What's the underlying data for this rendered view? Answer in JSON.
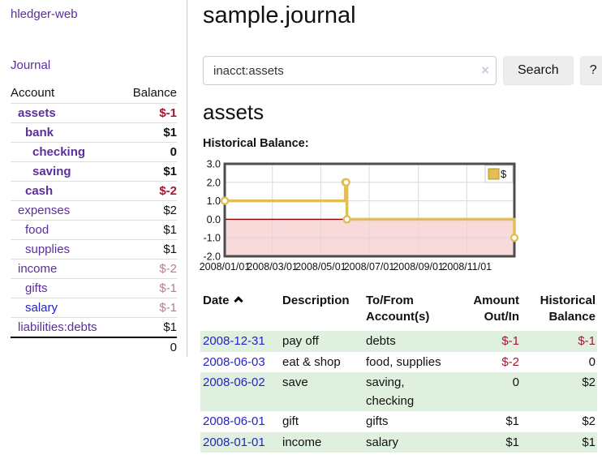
{
  "colors": {
    "link_purple": "#5b2e9e",
    "link_blue": "#2323cc",
    "negative_strong": "#9e1a34",
    "negative_muted": "#b97f86",
    "row_green": "#dff0df"
  },
  "sidebar": {
    "brand": "hledger-web",
    "nav": [
      {
        "label": "Journal"
      }
    ],
    "accounts_table": {
      "headers": [
        "Account",
        "Balance"
      ],
      "rows": [
        {
          "name": "assets",
          "depth": 1,
          "bold": true,
          "balance": "$-1",
          "balance_style": "neg-strong",
          "link_color": "purple"
        },
        {
          "name": "bank",
          "depth": 2,
          "bold": true,
          "balance": "$1",
          "balance_style": "pos",
          "link_color": "purple"
        },
        {
          "name": "checking",
          "depth": 3,
          "bold": true,
          "balance": "0",
          "balance_style": "pos",
          "link_color": "purple"
        },
        {
          "name": "saving",
          "depth": 3,
          "bold": true,
          "balance": "$1",
          "balance_style": "pos",
          "link_color": "purple"
        },
        {
          "name": "cash",
          "depth": 2,
          "bold": true,
          "balance": "$-2",
          "balance_style": "neg-strong",
          "link_color": "purple"
        },
        {
          "name": "expenses",
          "depth": 1,
          "bold": false,
          "balance": "$2",
          "balance_style": "pos",
          "link_color": "purple"
        },
        {
          "name": "food",
          "depth": 2,
          "bold": false,
          "balance": "$1",
          "balance_style": "pos",
          "link_color": "purple"
        },
        {
          "name": "supplies",
          "depth": 2,
          "bold": false,
          "balance": "$1",
          "balance_style": "pos",
          "link_color": "purple"
        },
        {
          "name": "income",
          "depth": 1,
          "bold": false,
          "balance": "$-2",
          "balance_style": "neg-muted",
          "link_color": "purple"
        },
        {
          "name": "gifts",
          "depth": 2,
          "bold": false,
          "balance": "$-1",
          "balance_style": "neg-muted",
          "link_color": "purple"
        },
        {
          "name": "salary",
          "depth": 2,
          "bold": false,
          "balance": "$-1",
          "balance_style": "neg-muted",
          "link_color": "blue"
        },
        {
          "name": "liabilities:debts",
          "depth": 1,
          "bold": false,
          "balance": "$1",
          "balance_style": "pos",
          "link_color": "purple"
        }
      ],
      "total": "0"
    }
  },
  "main": {
    "title": "sample.journal",
    "search": {
      "value": "inacct:assets",
      "clear_icon": "×",
      "button": "Search",
      "help_button": "?"
    },
    "account_heading": "assets",
    "chart_label": "Historical Balance:"
  },
  "chart_data": {
    "type": "line",
    "interpolation": "step-after",
    "title": "Historical Balance:",
    "series": [
      {
        "name": "$",
        "points": [
          {
            "date": "2008-01-01",
            "value": 1
          },
          {
            "date": "2008-06-01",
            "value": 2
          },
          {
            "date": "2008-06-02",
            "value": 2
          },
          {
            "date": "2008-06-03",
            "value": 0
          },
          {
            "date": "2008-12-31",
            "value": -1
          }
        ]
      }
    ],
    "x_range": [
      "2008-01-01",
      "2008-12-31"
    ],
    "ylim": [
      -2,
      3
    ],
    "yticks": [
      3.0,
      2.0,
      1.0,
      0.0,
      -1.0,
      -2.0
    ],
    "xticks": [
      "2008/01/01",
      "2008/03/01",
      "2008/05/01",
      "2008/07/01",
      "2008/09/01",
      "2008/11/01"
    ],
    "legend_position": "top-right",
    "grid": true,
    "colors": {
      "line": "#e2bf56",
      "marker_fill": "#ffffff",
      "swatch_border": "#b5952f",
      "negative_region": "#f9dada",
      "zero_line": "#8b0000",
      "grid": "#d6d6d6",
      "border": "#4d4d4d"
    }
  },
  "transactions": {
    "headers": {
      "date": "Date",
      "description": "Description",
      "account": "To/From Account(s)",
      "amount": "Amount Out/In",
      "balance": "Historical Balance"
    },
    "sort": "date-ascending-caret",
    "rows": [
      {
        "date": "2008-12-31",
        "description": "pay off",
        "accounts": "debts",
        "amount": "$-1",
        "amount_neg": true,
        "balance": "$-1",
        "balance_neg": true
      },
      {
        "date": "2008-06-03",
        "description": "eat & shop",
        "accounts": "food, supplies",
        "amount": "$-2",
        "amount_neg": true,
        "balance": "0",
        "balance_neg": false
      },
      {
        "date": "2008-06-02",
        "description": "save",
        "accounts": "saving, checking",
        "amount": "0",
        "amount_neg": false,
        "balance": "$2",
        "balance_neg": false
      },
      {
        "date": "2008-06-01",
        "description": "gift",
        "accounts": "gifts",
        "amount": "$1",
        "amount_neg": false,
        "balance": "$2",
        "balance_neg": false
      },
      {
        "date": "2008-01-01",
        "description": "income",
        "accounts": "salary",
        "amount": "$1",
        "amount_neg": false,
        "balance": "$1",
        "balance_neg": false
      }
    ]
  }
}
